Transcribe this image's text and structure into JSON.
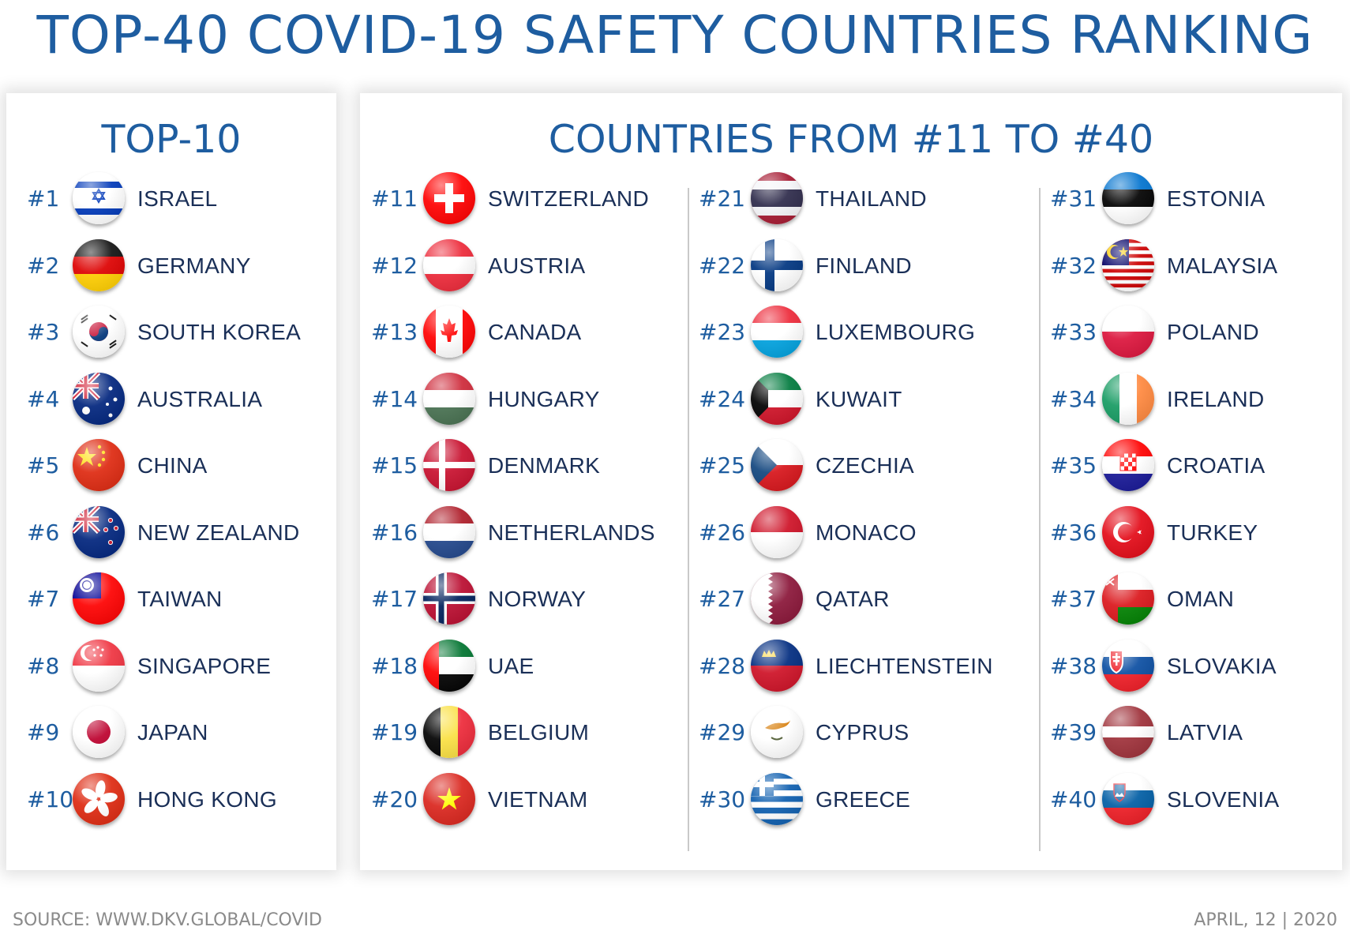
{
  "title": "TOP-40 COVID-19 SAFETY COUNTRIES RANKING",
  "top10": {
    "heading": "TOP-10",
    "items": [
      {
        "rank": "#1",
        "name": "ISRAEL",
        "flag": "israel"
      },
      {
        "rank": "#2",
        "name": "GERMANY",
        "flag": "germany"
      },
      {
        "rank": "#3",
        "name": "SOUTH KOREA",
        "flag": "south-korea"
      },
      {
        "rank": "#4",
        "name": "AUSTRALIA",
        "flag": "australia"
      },
      {
        "rank": "#5",
        "name": "CHINA",
        "flag": "china"
      },
      {
        "rank": "#6",
        "name": "NEW ZEALAND",
        "flag": "new-zealand"
      },
      {
        "rank": "#7",
        "name": "TAIWAN",
        "flag": "taiwan"
      },
      {
        "rank": "#8",
        "name": "SINGAPORE",
        "flag": "singapore"
      },
      {
        "rank": "#9",
        "name": "JAPAN",
        "flag": "japan"
      },
      {
        "rank": "#10",
        "name": "HONG KONG",
        "flag": "hong-kong"
      }
    ]
  },
  "rest": {
    "heading": "COUNTRIES FROM #11 TO #40",
    "columns": [
      [
        {
          "rank": "#11",
          "name": "SWITZERLAND",
          "flag": "switzerland"
        },
        {
          "rank": "#12",
          "name": "AUSTRIA",
          "flag": "austria"
        },
        {
          "rank": "#13",
          "name": "CANADA",
          "flag": "canada"
        },
        {
          "rank": "#14",
          "name": "HUNGARY",
          "flag": "hungary"
        },
        {
          "rank": "#15",
          "name": "DENMARK",
          "flag": "denmark"
        },
        {
          "rank": "#16",
          "name": "NETHERLANDS",
          "flag": "netherlands"
        },
        {
          "rank": "#17",
          "name": "NORWAY",
          "flag": "norway"
        },
        {
          "rank": "#18",
          "name": "UAE",
          "flag": "uae"
        },
        {
          "rank": "#19",
          "name": "BELGIUM",
          "flag": "belgium"
        },
        {
          "rank": "#20",
          "name": "VIETNAM",
          "flag": "vietnam"
        }
      ],
      [
        {
          "rank": "#21",
          "name": "THAILAND",
          "flag": "thailand"
        },
        {
          "rank": "#22",
          "name": "FINLAND",
          "flag": "finland"
        },
        {
          "rank": "#23",
          "name": "LUXEMBOURG",
          "flag": "luxembourg"
        },
        {
          "rank": "#24",
          "name": "KUWAIT",
          "flag": "kuwait"
        },
        {
          "rank": "#25",
          "name": "CZECHIA",
          "flag": "czechia"
        },
        {
          "rank": "#26",
          "name": "MONACO",
          "flag": "monaco"
        },
        {
          "rank": "#27",
          "name": "QATAR",
          "flag": "qatar"
        },
        {
          "rank": "#28",
          "name": "LIECHTENSTEIN",
          "flag": "liechtenstein"
        },
        {
          "rank": "#29",
          "name": "CYPRUS",
          "flag": "cyprus"
        },
        {
          "rank": "#30",
          "name": "GREECE",
          "flag": "greece"
        }
      ],
      [
        {
          "rank": "#31",
          "name": "ESTONIA",
          "flag": "estonia"
        },
        {
          "rank": "#32",
          "name": "MALAYSIA",
          "flag": "malaysia"
        },
        {
          "rank": "#33",
          "name": "POLAND",
          "flag": "poland"
        },
        {
          "rank": "#34",
          "name": "IRELAND",
          "flag": "ireland"
        },
        {
          "rank": "#35",
          "name": "CROATIA",
          "flag": "croatia"
        },
        {
          "rank": "#36",
          "name": "TURKEY",
          "flag": "turkey"
        },
        {
          "rank": "#37",
          "name": "OMAN",
          "flag": "oman"
        },
        {
          "rank": "#38",
          "name": "SLOVAKIA",
          "flag": "slovakia"
        },
        {
          "rank": "#39",
          "name": "LATVIA",
          "flag": "latvia"
        },
        {
          "rank": "#40",
          "name": "SLOVENIA",
          "flag": "slovenia"
        }
      ]
    ]
  },
  "footer": {
    "source": "SOURCE: WWW.DKV.GLOBAL/COVID",
    "date": "APRIL, 12 | 2020"
  }
}
